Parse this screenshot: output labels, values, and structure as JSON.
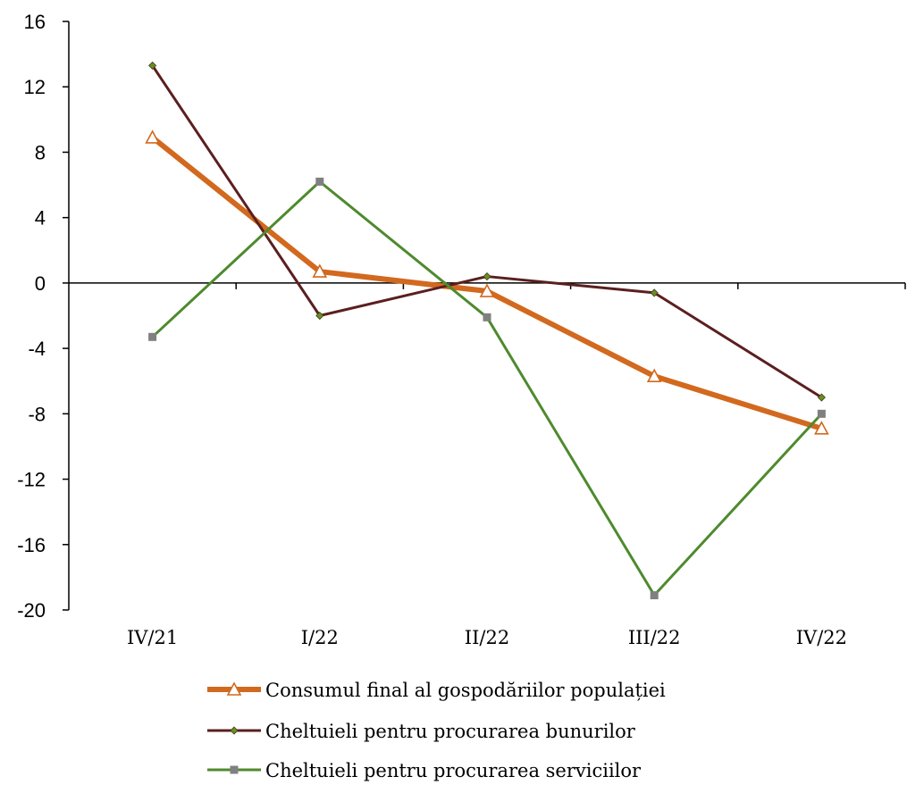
{
  "chart_data": {
    "type": "line",
    "categories": [
      "IV/21",
      "I/22",
      "II/22",
      "III/22",
      "IV/22"
    ],
    "ylim": [
      -20,
      16
    ],
    "yticks": [
      16,
      12,
      8,
      4,
      0,
      -4,
      -8,
      -12,
      -16,
      -20
    ],
    "ytick_labels": [
      "16",
      "12",
      "8",
      "4",
      "0",
      "-4",
      "-8",
      "-12",
      "-16",
      "-20"
    ],
    "grid": false,
    "legend_position": "bottom",
    "series": [
      {
        "name": "Consumul final al gospodăriilor populației",
        "values": [
          8.9,
          0.7,
          -0.5,
          -5.7,
          -8.9
        ],
        "color": "#D2691E",
        "marker": "triangle"
      },
      {
        "name": "Cheltuieli pentru procurarea bunurilor",
        "values": [
          13.3,
          -2.0,
          0.4,
          -0.6,
          -7.0
        ],
        "color": "#5B1F1F",
        "marker": "diamond"
      },
      {
        "name": "Cheltuieli pentru procurarea serviciilor",
        "values": [
          -3.3,
          6.2,
          -2.1,
          -19.1,
          -8.0
        ],
        "color": "#4E8A2E",
        "marker": "square"
      }
    ]
  }
}
